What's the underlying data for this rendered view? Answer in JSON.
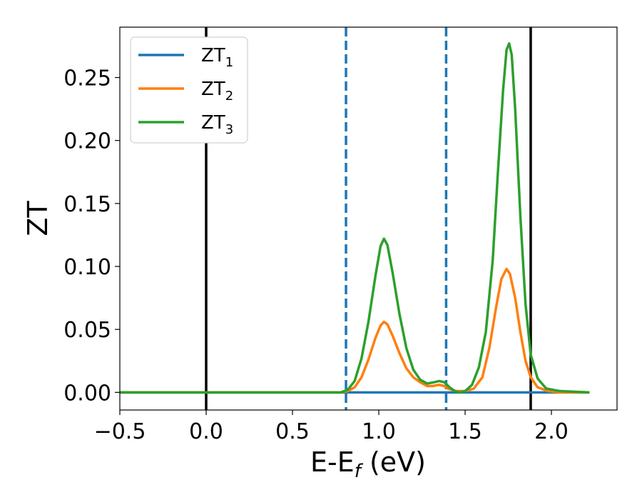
{
  "chart_data": {
    "type": "line",
    "title": "",
    "xlabel": "E-E",
    "xlabel_sub": "f",
    "xlabel_unit": " (eV)",
    "ylabel": "ZT",
    "xlim": [
      -0.5,
      2.38
    ],
    "ylim": [
      -0.014,
      0.29
    ],
    "grid": false,
    "legend_position": "top-left",
    "x_ticks": [
      {
        "value": -0.5,
        "label": "−0.5"
      },
      {
        "value": 0.0,
        "label": "0.0"
      },
      {
        "value": 0.5,
        "label": "0.5"
      },
      {
        "value": 1.0,
        "label": "1.0"
      },
      {
        "value": 1.5,
        "label": "1.5"
      },
      {
        "value": 2.0,
        "label": "2.0"
      }
    ],
    "y_ticks": [
      {
        "value": 0.0,
        "label": "0.00"
      },
      {
        "value": 0.05,
        "label": "0.05"
      },
      {
        "value": 0.1,
        "label": "0.10"
      },
      {
        "value": 0.15,
        "label": "0.15"
      },
      {
        "value": 0.2,
        "label": "0.20"
      },
      {
        "value": 0.25,
        "label": "0.25"
      }
    ],
    "vertical_lines": [
      {
        "x": 0.0,
        "style": "solid",
        "color": "#000000"
      },
      {
        "x": 1.88,
        "style": "solid",
        "color": "#000000"
      },
      {
        "x": 0.81,
        "style": "dashed",
        "color": "#1f77b4"
      },
      {
        "x": 1.39,
        "style": "dashed",
        "color": "#1f77b4"
      }
    ],
    "series": [
      {
        "name": "ZT",
        "sub": "1",
        "color": "#1f77b4",
        "points": [
          [
            -0.5,
            0
          ],
          [
            0.0,
            0
          ],
          [
            0.5,
            0
          ],
          [
            1.0,
            0
          ],
          [
            1.5,
            0
          ],
          [
            2.0,
            0
          ],
          [
            2.22,
            0
          ]
        ]
      },
      {
        "name": "ZT",
        "sub": "2",
        "color": "#ff7f0e",
        "points": [
          [
            -0.5,
            0
          ],
          [
            0.0,
            0
          ],
          [
            0.5,
            0
          ],
          [
            0.78,
            0
          ],
          [
            0.82,
            0.001
          ],
          [
            0.86,
            0.004
          ],
          [
            0.9,
            0.012
          ],
          [
            0.94,
            0.026
          ],
          [
            0.98,
            0.043
          ],
          [
            1.01,
            0.053
          ],
          [
            1.03,
            0.056
          ],
          [
            1.05,
            0.054
          ],
          [
            1.08,
            0.045
          ],
          [
            1.12,
            0.031
          ],
          [
            1.16,
            0.019
          ],
          [
            1.2,
            0.012
          ],
          [
            1.24,
            0.008
          ],
          [
            1.28,
            0.005
          ],
          [
            1.31,
            0.005
          ],
          [
            1.35,
            0.006
          ],
          [
            1.38,
            0.005
          ],
          [
            1.4,
            0.003
          ],
          [
            1.45,
            0.001
          ],
          [
            1.5,
            0.001
          ],
          [
            1.55,
            0.003
          ],
          [
            1.6,
            0.012
          ],
          [
            1.64,
            0.035
          ],
          [
            1.68,
            0.068
          ],
          [
            1.71,
            0.09
          ],
          [
            1.74,
            0.098
          ],
          [
            1.76,
            0.094
          ],
          [
            1.79,
            0.075
          ],
          [
            1.82,
            0.048
          ],
          [
            1.85,
            0.025
          ],
          [
            1.88,
            0.012
          ],
          [
            1.92,
            0.004
          ],
          [
            1.98,
            0.001
          ],
          [
            2.05,
            0
          ],
          [
            2.22,
            0
          ]
        ]
      },
      {
        "name": "ZT",
        "sub": "3",
        "color": "#2ca02c",
        "points": [
          [
            -0.5,
            0
          ],
          [
            0.0,
            0
          ],
          [
            0.5,
            0
          ],
          [
            0.78,
            0
          ],
          [
            0.82,
            0.002
          ],
          [
            0.86,
            0.009
          ],
          [
            0.9,
            0.027
          ],
          [
            0.94,
            0.056
          ],
          [
            0.98,
            0.092
          ],
          [
            1.01,
            0.116
          ],
          [
            1.03,
            0.122
          ],
          [
            1.05,
            0.117
          ],
          [
            1.08,
            0.095
          ],
          [
            1.12,
            0.062
          ],
          [
            1.16,
            0.035
          ],
          [
            1.2,
            0.018
          ],
          [
            1.24,
            0.01
          ],
          [
            1.28,
            0.007
          ],
          [
            1.32,
            0.008
          ],
          [
            1.35,
            0.009
          ],
          [
            1.38,
            0.008
          ],
          [
            1.41,
            0.004
          ],
          [
            1.44,
            0.001
          ],
          [
            1.47,
            0.0
          ],
          [
            1.5,
            0.001
          ],
          [
            1.54,
            0.006
          ],
          [
            1.58,
            0.02
          ],
          [
            1.62,
            0.048
          ],
          [
            1.66,
            0.105
          ],
          [
            1.69,
            0.175
          ],
          [
            1.72,
            0.24
          ],
          [
            1.74,
            0.272
          ],
          [
            1.755,
            0.277
          ],
          [
            1.77,
            0.268
          ],
          [
            1.79,
            0.225
          ],
          [
            1.82,
            0.14
          ],
          [
            1.85,
            0.07
          ],
          [
            1.88,
            0.03
          ],
          [
            1.92,
            0.011
          ],
          [
            1.97,
            0.003
          ],
          [
            2.05,
            0.001
          ],
          [
            2.22,
            0
          ]
        ]
      }
    ]
  }
}
